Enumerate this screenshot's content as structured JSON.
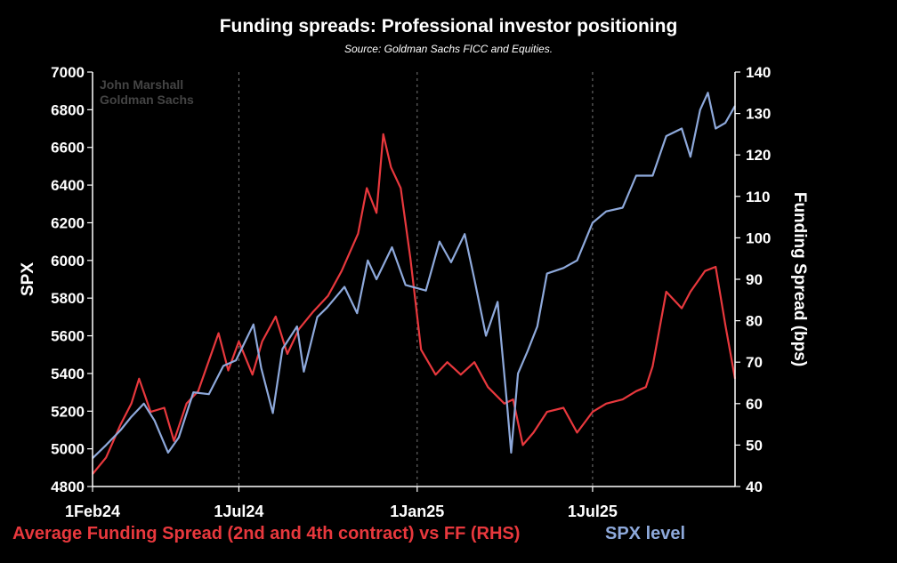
{
  "chart_data": {
    "type": "line",
    "title": "Funding spreads: Professional investor positioning",
    "subtitle": "Source: Goldman Sachs FICC and Equities.",
    "watermark": [
      "John Marshall",
      "Goldman Sachs"
    ],
    "xlabel": "",
    "ylabel_left": "SPX",
    "ylabel_right": "Funding Spread (bps)",
    "x_ticks": [
      "1Feb24",
      "1Jul24",
      "1Jan25",
      "1Jul25"
    ],
    "x_range": [
      "2024-02-01",
      "2025-11-25"
    ],
    "ylim_left": [
      4800,
      7000
    ],
    "yticks_left": [
      4800,
      5000,
      5200,
      5400,
      5600,
      5800,
      6000,
      6200,
      6400,
      6600,
      6800,
      7000
    ],
    "ylim_right": [
      40,
      140
    ],
    "yticks_right": [
      40,
      50,
      60,
      70,
      80,
      90,
      100,
      110,
      120,
      130,
      140
    ],
    "grid": true,
    "colors": {
      "funding": "#e8383d",
      "spx": "#8ea9db",
      "background": "#000000"
    },
    "series": [
      {
        "name": "Average Funding Spread (2nd and 4th contract) vs FF (RHS)",
        "axis": "right",
        "x": [
          "2024-02-01",
          "2024-02-15",
          "2024-03-01",
          "2024-03-12",
          "2024-03-20",
          "2024-04-01",
          "2024-04-15",
          "2024-04-25",
          "2024-05-08",
          "2024-05-20",
          "2024-06-01",
          "2024-06-10",
          "2024-06-20",
          "2024-07-01",
          "2024-07-15",
          "2024-07-25",
          "2024-08-08",
          "2024-08-20",
          "2024-09-01",
          "2024-09-15",
          "2024-10-01",
          "2024-10-15",
          "2024-11-01",
          "2024-11-10",
          "2024-11-20",
          "2024-11-27",
          "2024-12-05",
          "2024-12-15",
          "2024-12-25",
          "2025-01-05",
          "2025-01-20",
          "2025-02-01",
          "2025-02-15",
          "2025-03-01",
          "2025-03-15",
          "2025-04-01",
          "2025-04-10",
          "2025-04-20",
          "2025-05-01",
          "2025-05-15",
          "2025-06-01",
          "2025-06-15",
          "2025-07-01",
          "2025-07-15",
          "2025-08-01",
          "2025-08-15",
          "2025-08-25",
          "2025-09-01",
          "2025-09-15",
          "2025-10-01",
          "2025-10-10",
          "2025-10-25",
          "2025-11-05",
          "2025-11-15",
          "2025-11-25"
        ],
        "values": [
          43,
          47,
          55,
          60,
          66,
          58,
          59,
          51,
          60,
          63,
          71,
          77,
          68,
          75,
          67,
          75,
          81,
          72,
          78,
          82,
          86,
          92,
          101,
          112,
          106,
          125,
          117,
          112,
          95,
          73,
          67,
          70,
          67,
          70,
          64,
          60,
          61,
          50,
          53,
          58,
          59,
          53,
          58,
          60,
          61,
          63,
          64,
          69,
          87,
          83,
          87,
          92,
          93,
          79,
          66
        ]
      },
      {
        "name": "SPX level",
        "axis": "left",
        "x": [
          "2024-02-01",
          "2024-02-15",
          "2024-03-01",
          "2024-03-12",
          "2024-03-25",
          "2024-04-05",
          "2024-04-19",
          "2024-04-30",
          "2024-05-15",
          "2024-05-31",
          "2024-06-15",
          "2024-06-28",
          "2024-07-16",
          "2024-07-24",
          "2024-08-05",
          "2024-08-15",
          "2024-08-30",
          "2024-09-06",
          "2024-09-20",
          "2024-09-30",
          "2024-10-18",
          "2024-10-31",
          "2024-11-11",
          "2024-11-20",
          "2024-12-06",
          "2024-12-20",
          "2025-01-10",
          "2025-01-24",
          "2025-02-05",
          "2025-02-19",
          "2025-03-01",
          "2025-03-13",
          "2025-03-25",
          "2025-04-04",
          "2025-04-08",
          "2025-04-15",
          "2025-04-25",
          "2025-05-05",
          "2025-05-15",
          "2025-06-01",
          "2025-06-15",
          "2025-07-01",
          "2025-07-15",
          "2025-08-01",
          "2025-08-15",
          "2025-09-01",
          "2025-09-15",
          "2025-10-01",
          "2025-10-10",
          "2025-10-20",
          "2025-10-28",
          "2025-11-05",
          "2025-11-15",
          "2025-11-25"
        ],
        "values": [
          4950,
          5020,
          5100,
          5170,
          5240,
          5150,
          4980,
          5060,
          5300,
          5290,
          5440,
          5470,
          5660,
          5430,
          5190,
          5530,
          5650,
          5410,
          5700,
          5750,
          5860,
          5720,
          6000,
          5900,
          6070,
          5870,
          5840,
          6100,
          5990,
          6140,
          5900,
          5600,
          5780,
          5220,
          4980,
          5400,
          5520,
          5650,
          5930,
          5960,
          6000,
          6200,
          6260,
          6280,
          6450,
          6450,
          6660,
          6700,
          6550,
          6800,
          6890,
          6700,
          6730,
          6820
        ]
      }
    ]
  },
  "legend": {
    "funding_label": "Average Funding Spread (2nd and 4th contract) vs FF (RHS)",
    "spx_label": "SPX level"
  }
}
